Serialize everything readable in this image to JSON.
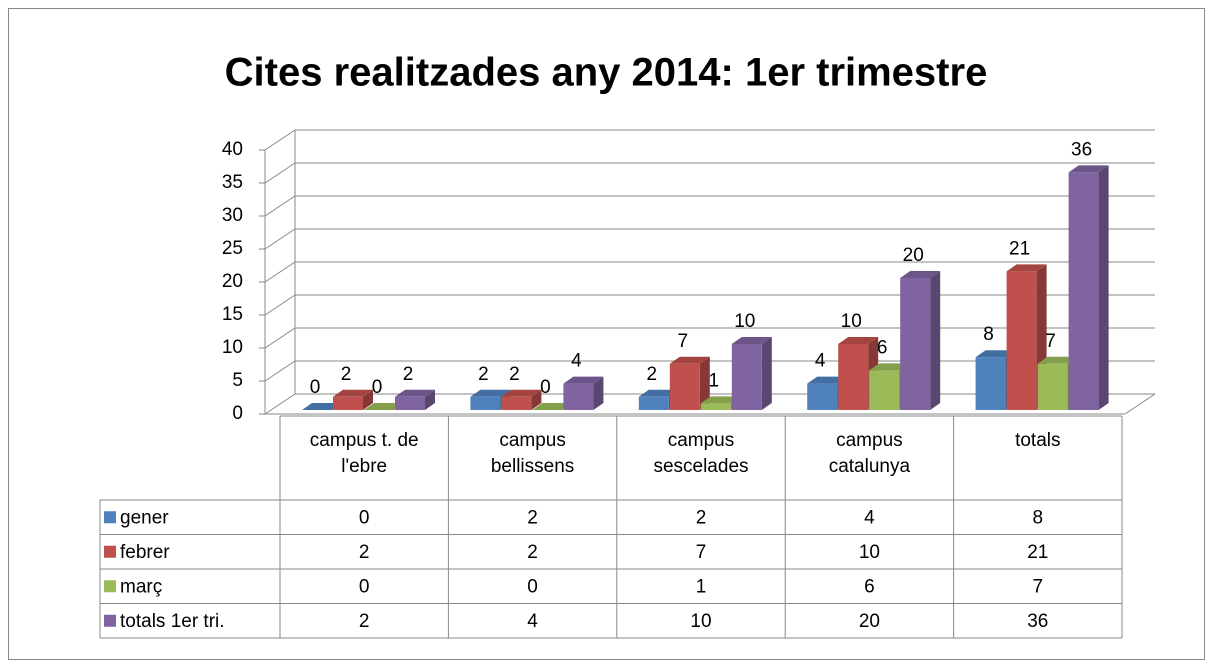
{
  "chart_data": {
    "type": "bar3d",
    "title": "Cites realitzades any 2014: 1er trimestre",
    "categories": [
      "campus t. de l'ebre",
      "campus bellissens",
      "campus sescelades",
      "campus catalunya",
      "totals"
    ],
    "series": [
      {
        "name": "gener",
        "color": "#4f81bd",
        "values": [
          0,
          2,
          2,
          4,
          8
        ]
      },
      {
        "name": "febrer",
        "color": "#c0504d",
        "values": [
          2,
          2,
          7,
          10,
          21
        ]
      },
      {
        "name": "març",
        "color": "#9bbb59",
        "values": [
          0,
          0,
          1,
          6,
          7
        ]
      },
      {
        "name": "totals 1er tri.",
        "color": "#8064a2",
        "values": [
          2,
          4,
          10,
          20,
          36
        ]
      }
    ],
    "ylim": [
      0,
      40
    ],
    "yticks": [
      0,
      5,
      10,
      15,
      20,
      25,
      30,
      35,
      40
    ],
    "grid": true,
    "data_table": true
  }
}
